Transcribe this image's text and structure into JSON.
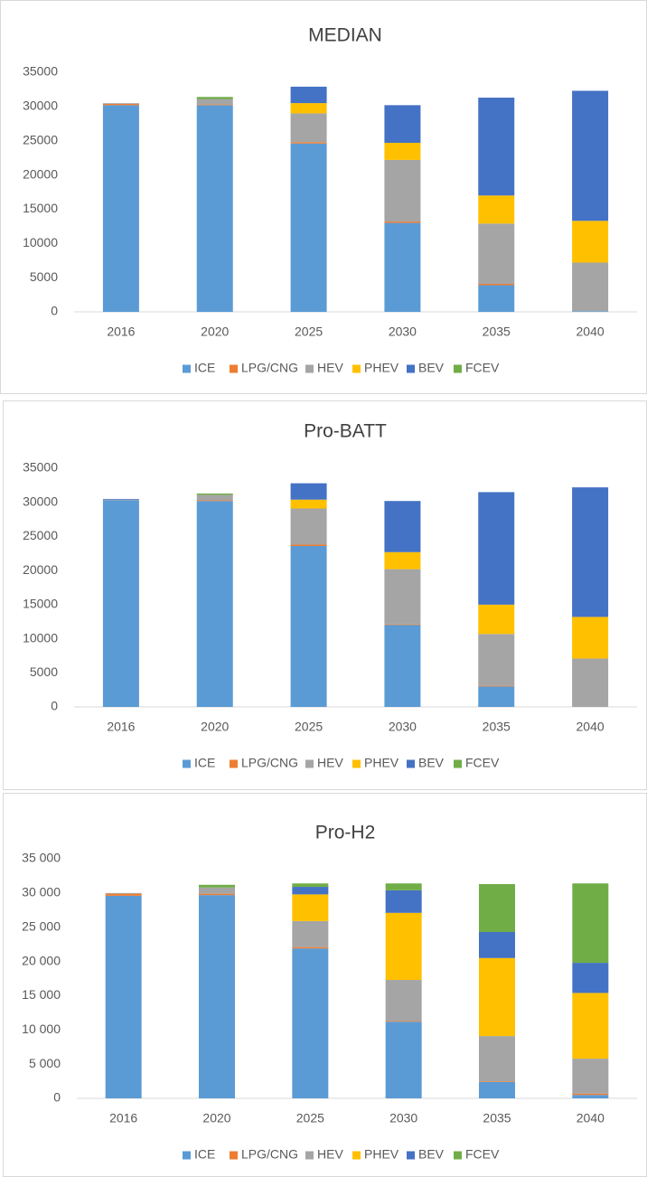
{
  "chart_data": [
    {
      "type": "stacked_bar",
      "title": "MEDIAN",
      "categories": [
        "2016",
        "2020",
        "2025",
        "2030",
        "2035",
        "2040"
      ],
      "series": [
        {
          "name": "ICE",
          "color": "#5b9bd5",
          "values": [
            30200,
            30200,
            24600,
            13000,
            3900,
            100
          ]
        },
        {
          "name": "LPG/CNG",
          "color": "#ed7d31",
          "values": [
            200,
            100,
            200,
            200,
            200,
            0
          ]
        },
        {
          "name": "HEV",
          "color": "#a5a5a5",
          "values": [
            100,
            800,
            4200,
            9000,
            8800,
            7100
          ]
        },
        {
          "name": "PHEV",
          "color": "#ffc000",
          "values": [
            0,
            0,
            1500,
            2500,
            4100,
            6100
          ]
        },
        {
          "name": "BEV",
          "color": "#4472c4",
          "values": [
            0,
            0,
            2400,
            5500,
            14300,
            19000
          ]
        },
        {
          "name": "FCEV",
          "color": "#70ad47",
          "values": [
            0,
            300,
            0,
            0,
            0,
            0
          ]
        }
      ],
      "ylim": [
        0,
        35000
      ],
      "yticks": [
        0,
        5000,
        10000,
        15000,
        20000,
        25000,
        30000,
        35000
      ],
      "grid": false,
      "legend": "bottom"
    },
    {
      "type": "stacked_bar",
      "title": "Pro-BATT",
      "categories": [
        "2016",
        "2020",
        "2025",
        "2030",
        "2035",
        "2040"
      ],
      "series": [
        {
          "name": "ICE",
          "color": "#5b9bd5",
          "values": [
            30300,
            30200,
            23600,
            12000,
            3000,
            0
          ]
        },
        {
          "name": "LPG/CNG",
          "color": "#ed7d31",
          "values": [
            0,
            100,
            200,
            100,
            100,
            0
          ]
        },
        {
          "name": "HEV",
          "color": "#a5a5a5",
          "values": [
            100,
            800,
            5300,
            8100,
            7600,
            7100
          ]
        },
        {
          "name": "PHEV",
          "color": "#ffc000",
          "values": [
            0,
            0,
            1300,
            2500,
            4300,
            6100
          ]
        },
        {
          "name": "BEV",
          "color": "#4472c4",
          "values": [
            100,
            0,
            2400,
            7500,
            16500,
            19000
          ]
        },
        {
          "name": "FCEV",
          "color": "#70ad47",
          "values": [
            0,
            200,
            0,
            0,
            0,
            0
          ]
        }
      ],
      "ylim": [
        0,
        35000
      ],
      "yticks": [
        0,
        5000,
        10000,
        15000,
        20000,
        25000,
        30000,
        35000
      ],
      "grid": false,
      "legend": "bottom"
    },
    {
      "type": "stacked_bar",
      "title": "Pro-H2",
      "categories": [
        "2016",
        "2020",
        "2025",
        "2030",
        "2035",
        "2040"
      ],
      "series": [
        {
          "name": "ICE",
          "color": "#5b9bd5",
          "values": [
            29600,
            29700,
            21900,
            11200,
            2400,
            500
          ]
        },
        {
          "name": "LPG/CNG",
          "color": "#ed7d31",
          "values": [
            300,
            200,
            200,
            100,
            100,
            200
          ]
        },
        {
          "name": "HEV",
          "color": "#a5a5a5",
          "values": [
            100,
            900,
            3800,
            6000,
            6600,
            5100
          ]
        },
        {
          "name": "PHEV",
          "color": "#ffc000",
          "values": [
            0,
            0,
            3900,
            9800,
            11400,
            9600
          ]
        },
        {
          "name": "BEV",
          "color": "#4472c4",
          "values": [
            0,
            0,
            1100,
            3300,
            3800,
            4400
          ]
        },
        {
          "name": "FCEV",
          "color": "#70ad47",
          "values": [
            0,
            400,
            500,
            1000,
            7000,
            11600
          ]
        }
      ],
      "ylim": [
        0,
        35000
      ],
      "yticks": [
        0,
        {
          "value": 5000,
          "label": "5 000"
        },
        {
          "value": 10000,
          "label": "10 000"
        },
        {
          "value": 15000,
          "label": "15 000"
        },
        {
          "value": 20000,
          "label": "20 000"
        },
        {
          "value": 25000,
          "label": "25 000"
        },
        {
          "value": 30000,
          "label": "30 000"
        },
        {
          "value": 35000,
          "label": "35 000"
        }
      ],
      "grid": false,
      "legend": "bottom"
    }
  ]
}
